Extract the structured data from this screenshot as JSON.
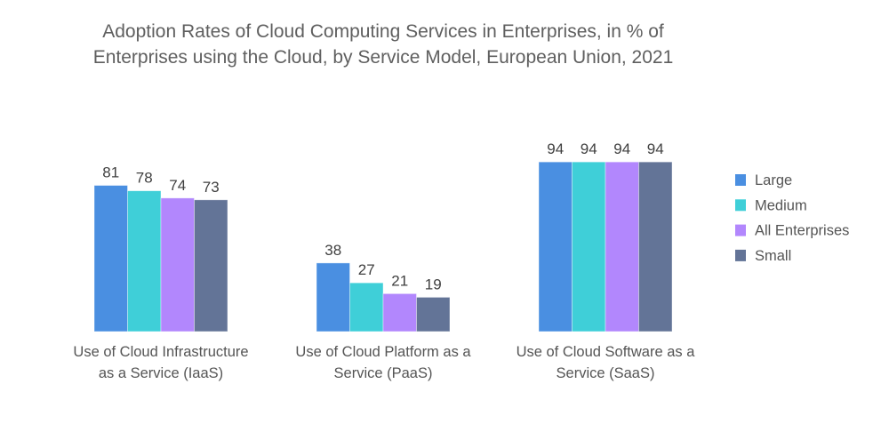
{
  "chart_data": {
    "type": "bar",
    "title_lines": [
      "Adoption Rates of Cloud Computing Services in Enterprises, in % of",
      "Enterprises using the Cloud, by Service Model, European Union, 2021"
    ],
    "categories": [
      [
        "Use of Cloud Infrastructure",
        "as a Service (IaaS)"
      ],
      [
        "Use of Cloud Platform as a",
        "Service (PaaS)"
      ],
      [
        "Use of Cloud Software as a",
        "Service (SaaS)"
      ]
    ],
    "series": [
      {
        "name": "Large",
        "color": "#4a8fe1",
        "values": [
          81,
          38,
          94
        ]
      },
      {
        "name": "Medium",
        "color": "#3fcfd8",
        "values": [
          78,
          27,
          94
        ]
      },
      {
        "name": "All Enterprises",
        "color": "#b287fd",
        "values": [
          74,
          21,
          94
        ]
      },
      {
        "name": "Small",
        "color": "#637497",
        "values": [
          73,
          19,
          94
        ]
      }
    ],
    "xlabel": "",
    "ylabel": "",
    "ylim": [
      0,
      100
    ],
    "grid": false,
    "data_labels": true,
    "legend_position": "right"
  }
}
